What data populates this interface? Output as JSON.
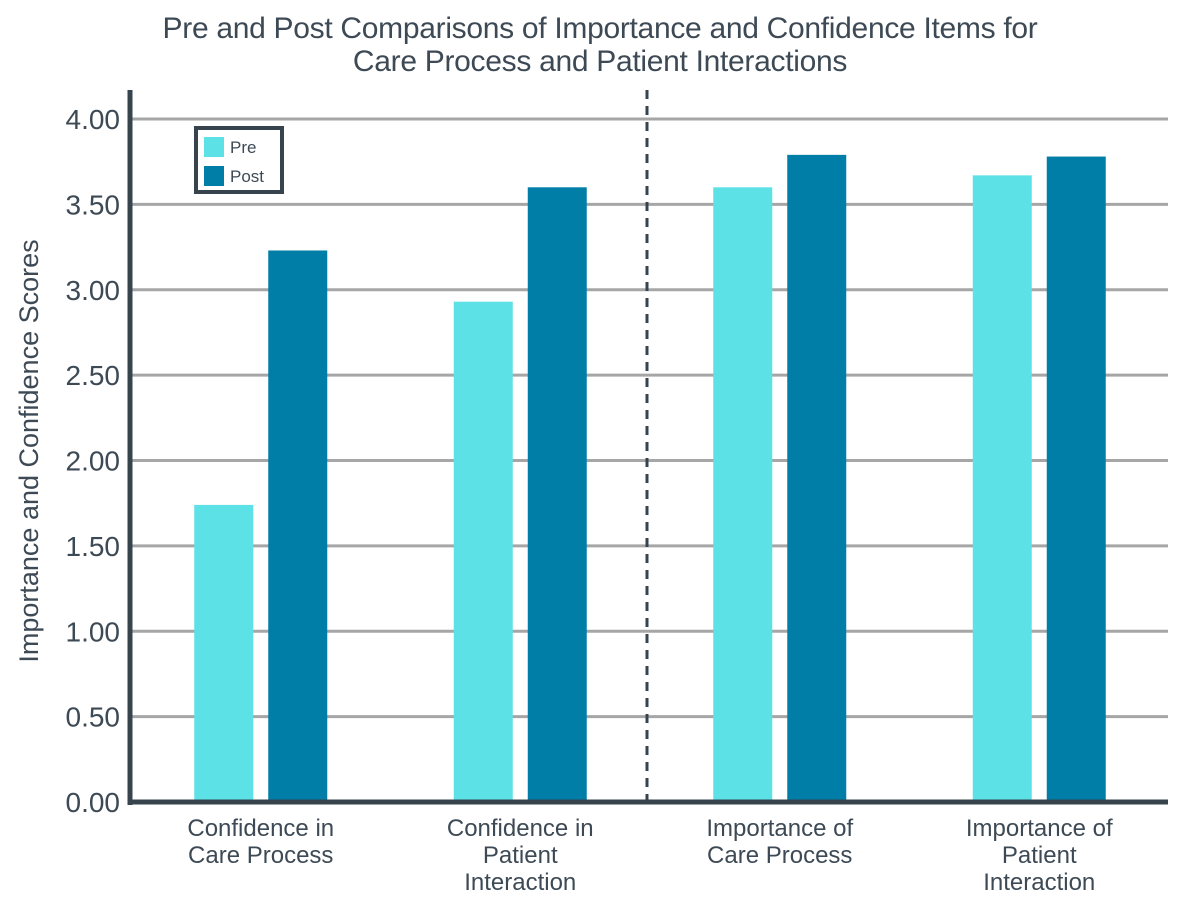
{
  "chart_data": {
    "type": "bar",
    "title": [
      "Pre and Post Comparisons of Importance and Confidence Items for",
      "Care Process and Patient Interactions"
    ],
    "xlabel": "",
    "ylabel": "Importance and Confidence Scores",
    "ylim": [
      0,
      4.0
    ],
    "yticks": [
      "0.00",
      "0.50",
      "1.00",
      "1.50",
      "2.00",
      "2.50",
      "3.00",
      "3.50",
      "4.00"
    ],
    "grid": true,
    "legend_position": "top-left",
    "categories": [
      [
        "Confidence in",
        "Care Process"
      ],
      [
        "Confidence in",
        "Patient",
        "Interaction"
      ],
      [
        "Importance of",
        "Care Process"
      ],
      [
        "Importance of",
        "Patient",
        "Interaction"
      ]
    ],
    "series": [
      {
        "name": "Pre",
        "color": "#5ce1e6",
        "values": [
          1.74,
          2.93,
          3.6,
          3.67
        ]
      },
      {
        "name": "Post",
        "color": "#007ea7",
        "values": [
          3.23,
          3.6,
          3.79,
          3.78
        ]
      }
    ],
    "annotations": [
      "vertical dashed divider between Confidence and Importance groups"
    ]
  },
  "colors": {
    "axis": "#37444e",
    "grid": "#a6a6a6",
    "text": "#3d4a55"
  }
}
